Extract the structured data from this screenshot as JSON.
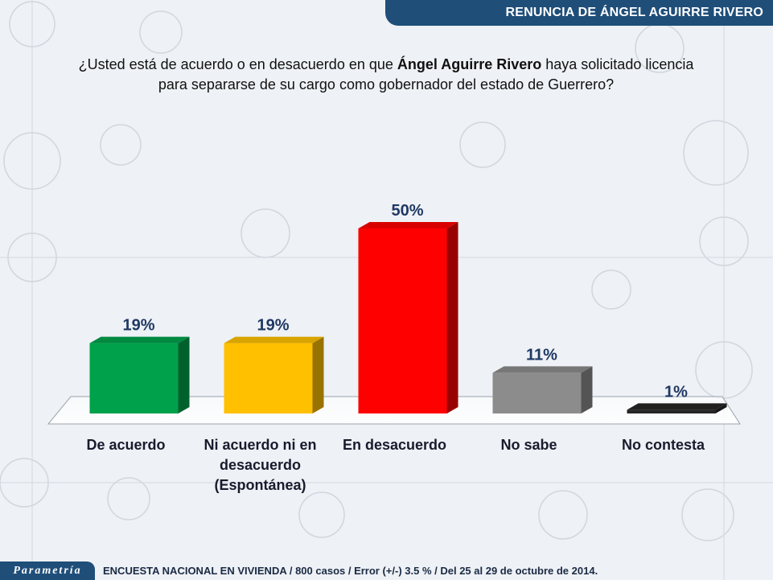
{
  "header": {
    "title": "RENUNCIA DE ÁNGEL AGUIRRE RIVERO",
    "band_color": "#1f4e79"
  },
  "question": {
    "part1": "¿Usted está de acuerdo o en desacuerdo en que ",
    "bold": "Ángel Aguirre Rivero",
    "part2": " haya solicitado licencia",
    "line2": "para separarse de su cargo como gobernador del estado de Guerrero?"
  },
  "chart_data": {
    "type": "bar",
    "title": "",
    "xlabel": "",
    "ylabel": "",
    "ylim": [
      0,
      60
    ],
    "grid": false,
    "categories": [
      [
        "De acuerdo"
      ],
      [
        "Ni acuerdo ni en",
        "desacuerdo",
        "(Espontánea)"
      ],
      [
        "En desacuerdo"
      ],
      [
        "No sabe"
      ],
      [
        "No contesta"
      ]
    ],
    "values": [
      19,
      19,
      50,
      11,
      1
    ],
    "data_labels": [
      "19%",
      "19%",
      "50%",
      "11%",
      "1%"
    ],
    "colors": [
      "#00a14b",
      "#ffc000",
      "#ff0000",
      "#8c8c8c",
      "#262626"
    ]
  },
  "footer": {
    "logo": "Parametría",
    "note": "ENCUESTA NACIONAL EN VIVIENDA / 800 casos / Error (+/-) 3.5 % / Del 25 al 29 de octubre de 2014."
  }
}
